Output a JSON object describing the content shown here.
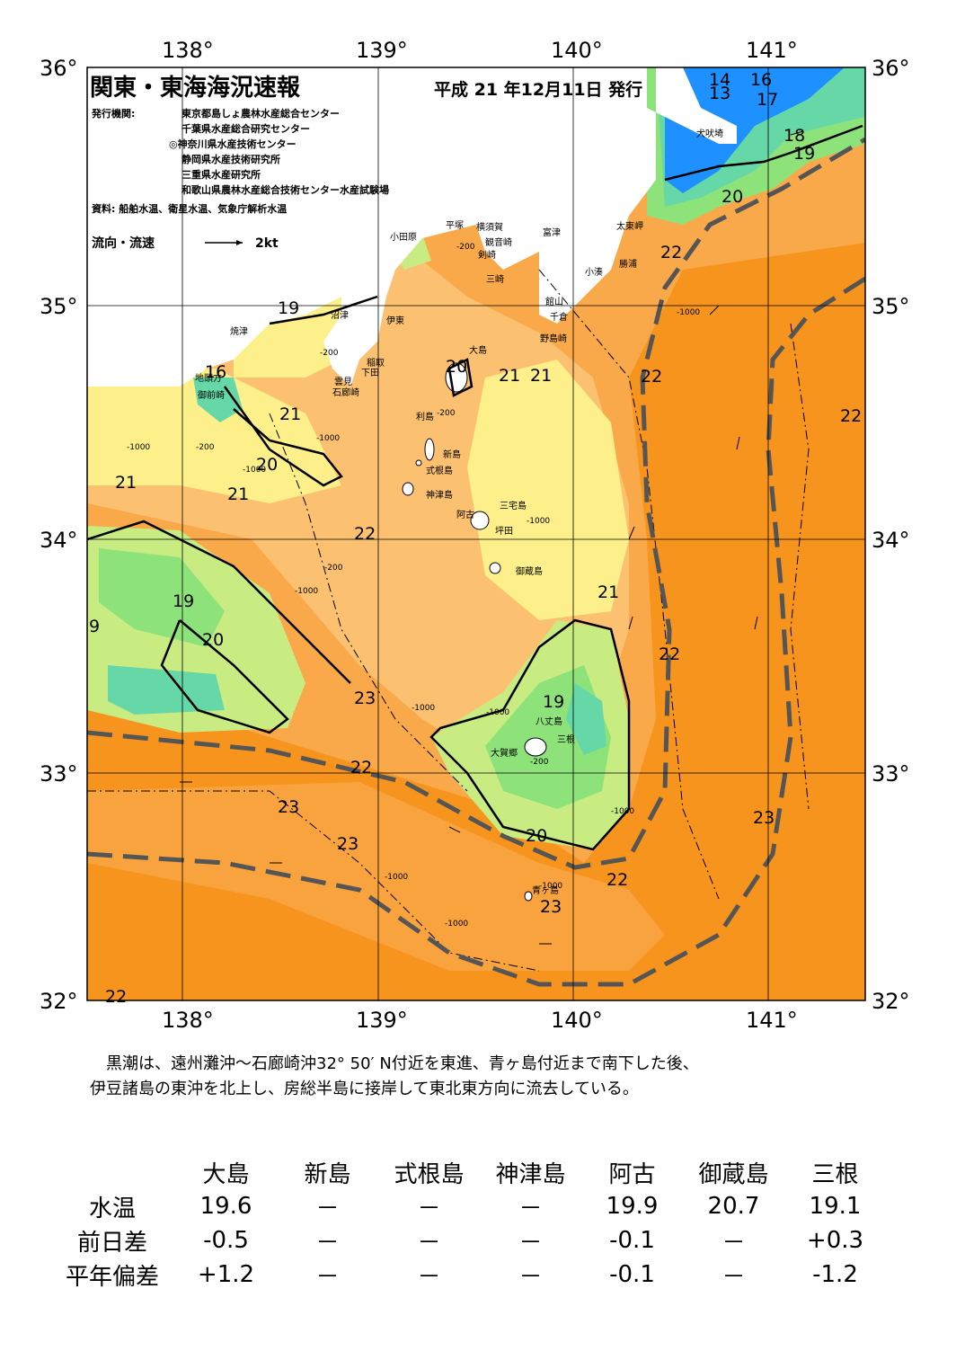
{
  "map": {
    "title": "関東・東海海況速報",
    "issue": "平成 21 年12月11日 発行",
    "publisher_label": "発行機関:",
    "publishers": [
      "東京都島しょ農林水産総合センター",
      "千葉県水産総合研究センター",
      "◎神奈川県水産技術センター",
      "静岡県水産技術研究所",
      "三重県水産研究所",
      "和歌山県農林水産総合技術センター水産試験場"
    ],
    "source": "資料: 船舶水温、衛星水温、気象庁解析水温",
    "current_legend": "流向・流速",
    "current_scale": "2kt",
    "lon_labels": [
      "138°",
      "139°",
      "140°",
      "141°"
    ],
    "lat_labels": [
      "36°",
      "35°",
      "34°",
      "33°",
      "32°"
    ],
    "colors": {
      "warm_orange": "#F7941D",
      "orange": "#F9A84A",
      "light_orange": "#FBC170",
      "yellow": "#FDF08A",
      "light_green": "#C8EC82",
      "green": "#8EE27A",
      "teal": "#66D7A6",
      "blue": "#1E90FF",
      "kuroshio_axis": "#555555"
    },
    "isotherm_labels": [
      "14",
      "13",
      "16",
      "17",
      "18",
      "19",
      "20",
      "22",
      "19",
      "16",
      "21",
      "20",
      "21",
      "22",
      "21",
      "21",
      "20",
      "19",
      "20",
      "21",
      "19",
      "22",
      "21",
      "9",
      "22",
      "22",
      "20",
      "23",
      "22",
      "23",
      "22",
      "23",
      "22"
    ],
    "place_labels": [
      "犬吠埼",
      "太東岬",
      "勝浦",
      "小湊",
      "富津",
      "館山",
      "千倉",
      "野島崎",
      "横須賀",
      "観音崎",
      "剣崎",
      "三崎",
      "平塚",
      "小田原",
      "伊東",
      "沼津",
      "焼津",
      "地頭方",
      "御前崎",
      "稲取",
      "下田",
      "雲見",
      "石廊崎",
      "大島",
      "利島",
      "新島",
      "式根島",
      "神津島",
      "三宅島",
      "阿古",
      "坪田",
      "御蔵島",
      "八丈島",
      "三根",
      "大賀郷",
      "青ヶ島"
    ],
    "depth_labels": [
      "-200",
      "-200",
      "-1000",
      "-1000",
      "-200",
      "-1000",
      "-200",
      "-1000",
      "-1000",
      "-1000",
      "-200",
      "-1000",
      "-1000",
      "-1000",
      "-1000",
      "-1000",
      "-200",
      "-1000"
    ]
  },
  "description": "　黒潮は、遠州灘沖～石廊崎沖32° 50′ N付近を東進、青ヶ島付近まで南下した後、\n伊豆諸島の東沖を北上し、房総半島に接岸して東北東方向に流去している。",
  "table": {
    "columns": [
      "大島",
      "新島",
      "式根島",
      "神津島",
      "阿古",
      "御蔵島",
      "三根"
    ],
    "rows": [
      {
        "label": "水温",
        "values": [
          "19.6",
          "－",
          "－",
          "－",
          "19.9",
          "20.7",
          "19.1"
        ]
      },
      {
        "label": "前日差",
        "values": [
          "-0.5",
          "－",
          "－",
          "－",
          "-0.1",
          "－",
          "+0.3"
        ]
      },
      {
        "label": "平年偏差",
        "values": [
          "+1.2",
          "－",
          "－",
          "－",
          "-0.1",
          "－",
          "-1.2"
        ]
      }
    ]
  }
}
